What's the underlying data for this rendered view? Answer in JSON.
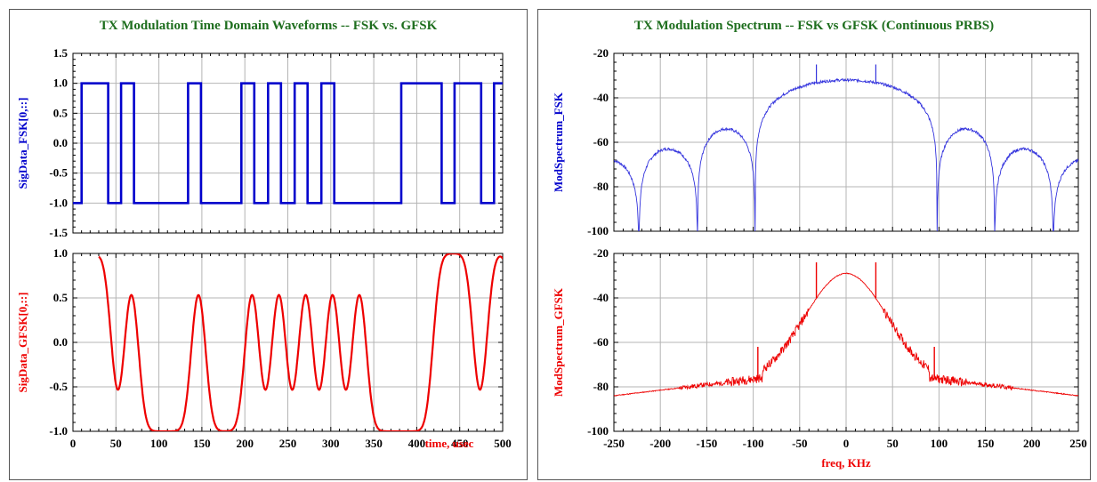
{
  "chart_data": [
    {
      "type": "line",
      "panel_title": "TX Modulation Time Domain Waveforms -- FSK vs. GFSK",
      "ylabel": "SigData_FSK[0,::]",
      "ylim": [
        -1.5,
        1.5
      ],
      "yticks": [
        "1.5",
        "1.0",
        "0.5",
        "0.0",
        "-0.5",
        "-1.0",
        "-1.5"
      ],
      "xlim": [
        0,
        500
      ],
      "grid": true,
      "series": [
        {
          "color": "#0000cc",
          "x_start": 0,
          "x_end": 500,
          "initial_level": -1,
          "transitions": [
            [
              10,
              1
            ],
            [
              41,
              -1
            ],
            [
              56,
              1
            ],
            [
              71,
              -1
            ],
            [
              134,
              1
            ],
            [
              149,
              -1
            ],
            [
              196,
              1
            ],
            [
              211,
              -1
            ],
            [
              227,
              1
            ],
            [
              242,
              -1
            ],
            [
              258,
              1
            ],
            [
              273,
              -1
            ],
            [
              289,
              1
            ],
            [
              304,
              -1
            ],
            [
              382,
              1
            ],
            [
              429,
              -1
            ],
            [
              444,
              1
            ],
            [
              475,
              -1
            ],
            [
              490,
              1
            ]
          ]
        }
      ]
    },
    {
      "type": "line",
      "ylabel": "SigData_GFSK[0,::]",
      "xlabel": "time, usec",
      "ylim": [
        -1.0,
        1.0
      ],
      "yticks": [
        "1.0",
        "0.5",
        "0.0",
        "-0.5",
        "-1.0"
      ],
      "xlim": [
        0,
        500
      ],
      "xticks": [
        "0",
        "50",
        "100",
        "150",
        "200",
        "250",
        "300",
        "350",
        "400",
        "450",
        "500"
      ],
      "grid": true,
      "series": [
        {
          "color": "#ee0000",
          "x_start": 30,
          "x_end": 500,
          "bit_period": 15.6,
          "bits": [
            -1,
            1,
            1,
            -1,
            1,
            -1,
            -1,
            -1,
            -1,
            1,
            -1,
            -1,
            -1,
            1,
            -1,
            1,
            -1,
            1,
            -1,
            1,
            -1,
            1,
            -1,
            -1,
            -1,
            -1,
            -1,
            1,
            1,
            1,
            -1,
            1,
            1,
            -1
          ],
          "data_offset": 29
        }
      ]
    },
    {
      "type": "line",
      "panel_title": "TX Modulation Spectrum -- FSK vs GFSK (Continuous PRBS)",
      "ylabel": "ModSpectrum_FSK",
      "ylim": [
        -100,
        -20
      ],
      "yticks": [
        "-20",
        "-40",
        "-60",
        "-80",
        "-100"
      ],
      "xlim": [
        -250,
        250
      ],
      "grid": true,
      "series": [
        {
          "color": "#3333dd",
          "nulls_khz": [
            -223,
            -160,
            -98,
            98,
            160,
            223
          ],
          "lobe_peaks_db": {
            "main": -32,
            "first": -54,
            "second": -63,
            "third": -68
          },
          "spurs": [
            {
              "x": -32,
              "y": -25
            },
            {
              "x": 32,
              "y": -25
            }
          ]
        }
      ]
    },
    {
      "type": "line",
      "ylabel": "ModSpectrum_GFSK",
      "xlabel": "freq, KHz",
      "ylim": [
        -100,
        -20
      ],
      "yticks": [
        "-20",
        "-40",
        "-60",
        "-80",
        "-100"
      ],
      "xlim": [
        -250,
        250
      ],
      "xticks": [
        "-250",
        "-200",
        "-150",
        "-100",
        "-50",
        "0",
        "50",
        "100",
        "150",
        "200",
        "250"
      ],
      "grid": true,
      "series": [
        {
          "color": "#ee0000",
          "peak_db": -29,
          "edge_db": -84,
          "spurs": [
            {
              "x": -32,
              "y": -24
            },
            {
              "x": 32,
              "y": -24
            },
            {
              "x": -95,
              "y": -62
            },
            {
              "x": 95,
              "y": -62
            }
          ]
        }
      ]
    }
  ]
}
